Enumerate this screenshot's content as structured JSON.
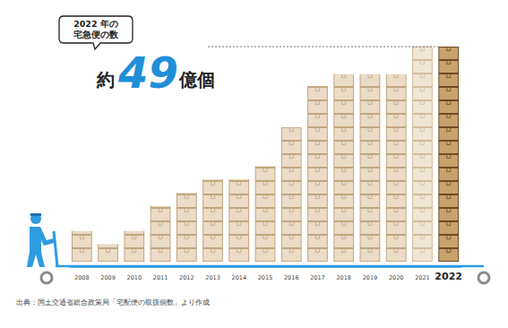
{
  "chart_data": {
    "type": "bar",
    "categories": [
      "2008",
      "2009",
      "2010",
      "2011",
      "2012",
      "2013",
      "2014",
      "2015",
      "2016",
      "2017",
      "2018",
      "2019",
      "2020",
      "2021",
      "2022"
    ],
    "values": [
      7,
      4,
      7,
      12.7,
      15.7,
      18.8,
      18.8,
      21.8,
      30.6,
      40,
      42.7,
      42.7,
      42.7,
      49,
      49
    ],
    "colors": [
      "#eadcc6",
      "#eadcc6",
      "#eadcc6",
      "#eadcc6",
      "#eadcc6",
      "#eadcc6",
      "#eadcc6",
      "#eadcc6",
      "#eadcc6",
      "#eadcc6",
      "#eadcc6",
      "#eadcc6",
      "#eadcc6",
      "#eadcc6",
      "#c9a26b"
    ],
    "ylim": [
      0,
      49
    ],
    "tick_labels": "x",
    "grid": false,
    "annotation": {
      "lines": [
        "2022 年の",
        "宅急便の数"
      ],
      "prefix": "約",
      "value": 49,
      "unit": "億個"
    },
    "source": "出典：国土交通省総合政策局「宅配便の取扱個数」より作成"
  }
}
